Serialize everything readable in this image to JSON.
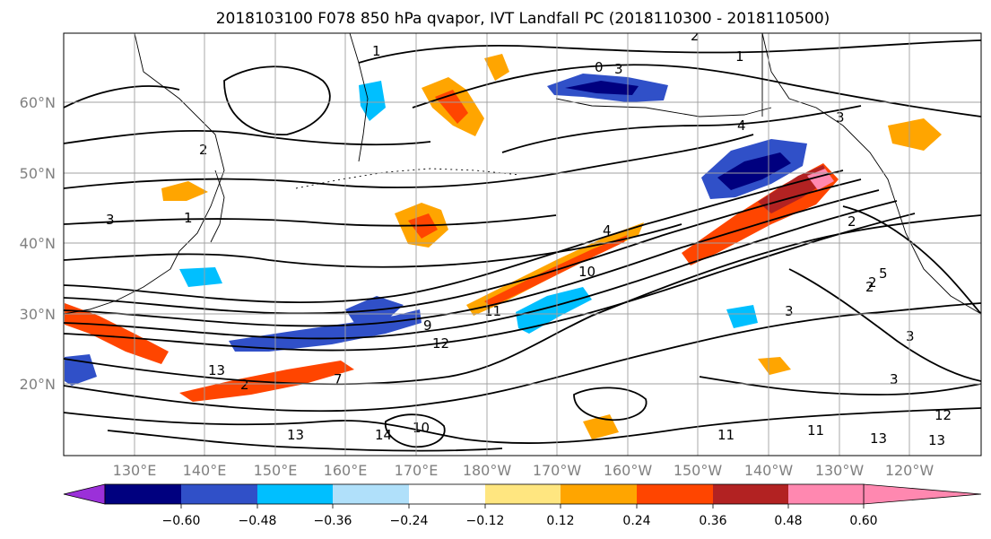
{
  "title": "2018103100 F078 850 hPa qvapor, IVT Landfall PC (2018110300 - 2018110500)",
  "lat_labels": [
    "20°N",
    "30°N",
    "40°N",
    "50°N",
    "60°N"
  ],
  "lon_labels": [
    "130°E",
    "140°E",
    "150°E",
    "160°E",
    "170°E",
    "180°W",
    "170°W",
    "160°W",
    "150°W",
    "140°W",
    "130°W",
    "120°W"
  ],
  "colorbar": {
    "ticks": [
      "−0.60",
      "−0.48",
      "−0.36",
      "−0.24",
      "−0.12",
      "0.12",
      "0.24",
      "0.36",
      "0.48",
      "0.60"
    ],
    "colors": [
      "#9b30d9",
      "#00007f",
      "#3050c8",
      "#00bfff",
      "#b0e0fa",
      "#ffffff",
      "#ffe680",
      "#ffa500",
      "#ff4500",
      "#b22222",
      "#ff88b0"
    ]
  },
  "contour_labels": [
    "2",
    "1",
    "0",
    "3",
    "1",
    "3",
    "4",
    "2",
    "3",
    "1",
    "4",
    "10",
    "11",
    "2",
    "3",
    "2",
    "3",
    "13",
    "2",
    "9",
    "12",
    "7",
    "14",
    "10",
    "13",
    "11",
    "11",
    "13",
    "13",
    "12",
    "3",
    "5",
    "2"
  ]
}
